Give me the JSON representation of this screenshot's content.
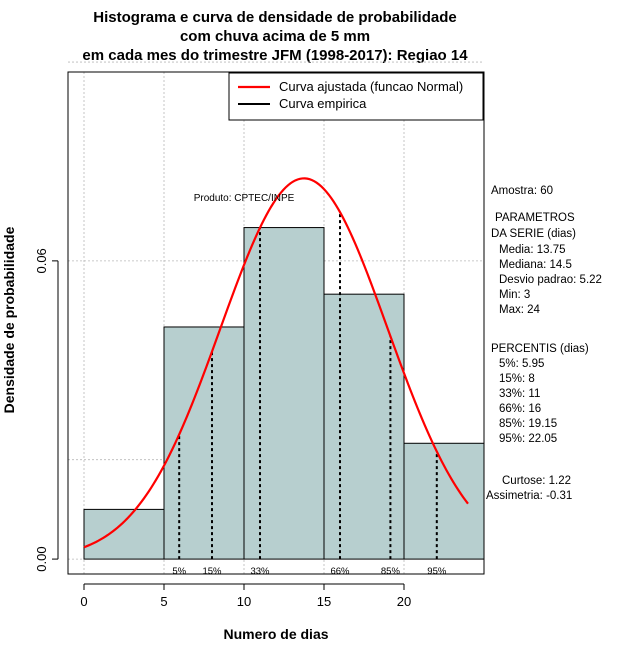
{
  "chart_data": {
    "type": "bar",
    "title_lines": [
      "Histograma e curva de densidade de probabilidade",
      "com chuva acima de 5 mm",
      "em cada mes do trimestre JFM (1998-2017): Regiao 14"
    ],
    "xlabel": "Numero de dias",
    "ylabel": "Densidade de probabilidade",
    "xlim": [
      -1,
      25
    ],
    "ylim": [
      -0.003,
      0.098
    ],
    "x_ticks": [
      0,
      5,
      10,
      15,
      20
    ],
    "y_ticks": [
      0.0,
      0.06
    ],
    "y_tick_labels": [
      "0.00",
      "0.06"
    ],
    "grid_x": [
      0,
      5,
      10,
      15,
      20,
      25
    ],
    "grid_y": [
      0.0,
      0.02,
      0.06,
      0.1
    ],
    "bins": [
      {
        "start": 0,
        "end": 5,
        "density": 0.01
      },
      {
        "start": 5,
        "end": 10,
        "density": 0.0467
      },
      {
        "start": 10,
        "end": 15,
        "density": 0.0667
      },
      {
        "start": 15,
        "end": 20,
        "density": 0.0533
      },
      {
        "start": 20,
        "end": 25,
        "density": 0.0233
      }
    ],
    "bar_color": "#b7cfcf",
    "normal_fit": {
      "name": "Curva ajustada (funcao Normal)",
      "mean": 13.75,
      "sd": 5.22,
      "x_from": 0,
      "x_to": 24,
      "color": "#ff0000"
    },
    "empirical": {
      "name": "Curva empirica",
      "color": "#000000"
    },
    "legend_position": "top-right",
    "percentile_lines": [
      {
        "label": "5%",
        "x": 5.95
      },
      {
        "label": "15%",
        "x": 8
      },
      {
        "label": "33%",
        "x": 11
      },
      {
        "label": "66%",
        "x": 16
      },
      {
        "label": "85%",
        "x": 19.15
      },
      {
        "label": "95%",
        "x": 22.05
      }
    ],
    "watermark": "Produto: CPTEC/INPE",
    "stats": {
      "amostra": "Amostra: 60",
      "param_title_1": "PARAMETROS",
      "param_title_2": "DA SERIE (dias)",
      "media": "Media: 13.75",
      "mediana": "Mediana: 14.5",
      "desvio": "Desvio padrao: 5.22",
      "min": "Min: 3",
      "max": "Max: 24",
      "percentis_title": "PERCENTIS (dias)",
      "p5": "5%: 5.95",
      "p15": "15%: 8",
      "p33": "33%: 11",
      "p66": "66%: 16",
      "p85": "85%: 19.15",
      "p95": "95%: 22.05",
      "curtose": "Curtose: 1.22",
      "assimetria": "Assimetria: -0.31"
    }
  }
}
